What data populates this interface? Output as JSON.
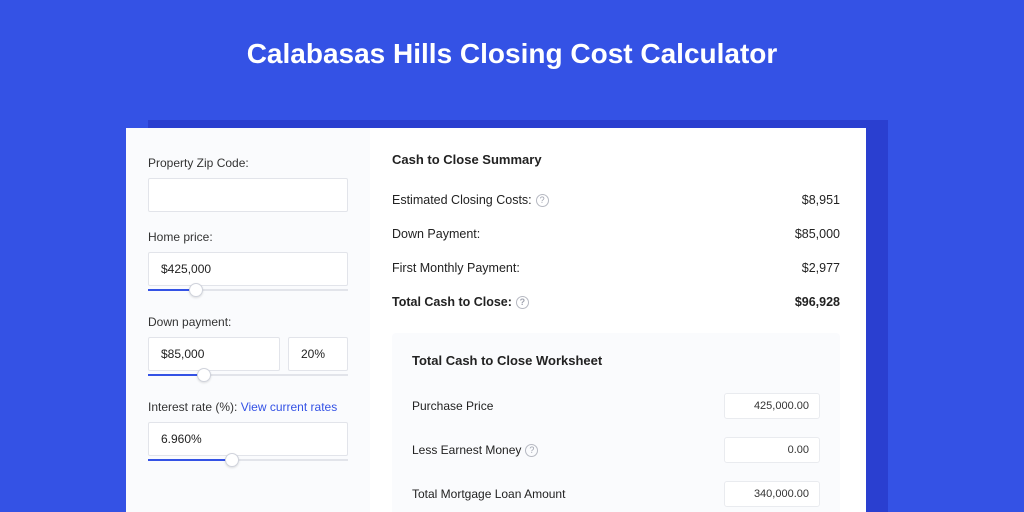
{
  "colors": {
    "page_bg": "#3452e5",
    "shadow": "#2a3fd0",
    "card_bg": "#ffffff",
    "sidebar_bg": "#fafbfd",
    "worksheet_bg": "#fafbfd",
    "input_border": "#e2e4ea",
    "slider_track": "#e2e4ea",
    "slider_fill": "#3452e5",
    "link": "#3452e5",
    "text": "#222222",
    "muted": "#9fa3af"
  },
  "title": "Calabasas Hills Closing Cost Calculator",
  "sidebar": {
    "zip": {
      "label": "Property Zip Code:",
      "value": ""
    },
    "home_price": {
      "label": "Home price:",
      "value": "$425,000",
      "slider_pct": 24
    },
    "down_payment": {
      "label": "Down payment:",
      "value": "$85,000",
      "pct_value": "20%",
      "slider_pct": 28
    },
    "interest": {
      "label": "Interest rate (%):",
      "link_text": "View current rates",
      "value": "6.960%",
      "slider_pct": 42
    }
  },
  "summary": {
    "title": "Cash to Close Summary",
    "rows": [
      {
        "label": "Estimated Closing Costs:",
        "help": true,
        "value": "$8,951",
        "bold": false
      },
      {
        "label": "Down Payment:",
        "help": false,
        "value": "$85,000",
        "bold": false
      },
      {
        "label": "First Monthly Payment:",
        "help": false,
        "value": "$2,977",
        "bold": false
      },
      {
        "label": "Total Cash to Close:",
        "help": true,
        "value": "$96,928",
        "bold": true
      }
    ]
  },
  "worksheet": {
    "title": "Total Cash to Close Worksheet",
    "rows": [
      {
        "label": "Purchase Price",
        "help": false,
        "value": "425,000.00"
      },
      {
        "label": "Less Earnest Money",
        "help": true,
        "value": "0.00"
      },
      {
        "label": "Total Mortgage Loan Amount",
        "help": false,
        "value": "340,000.00"
      }
    ]
  }
}
